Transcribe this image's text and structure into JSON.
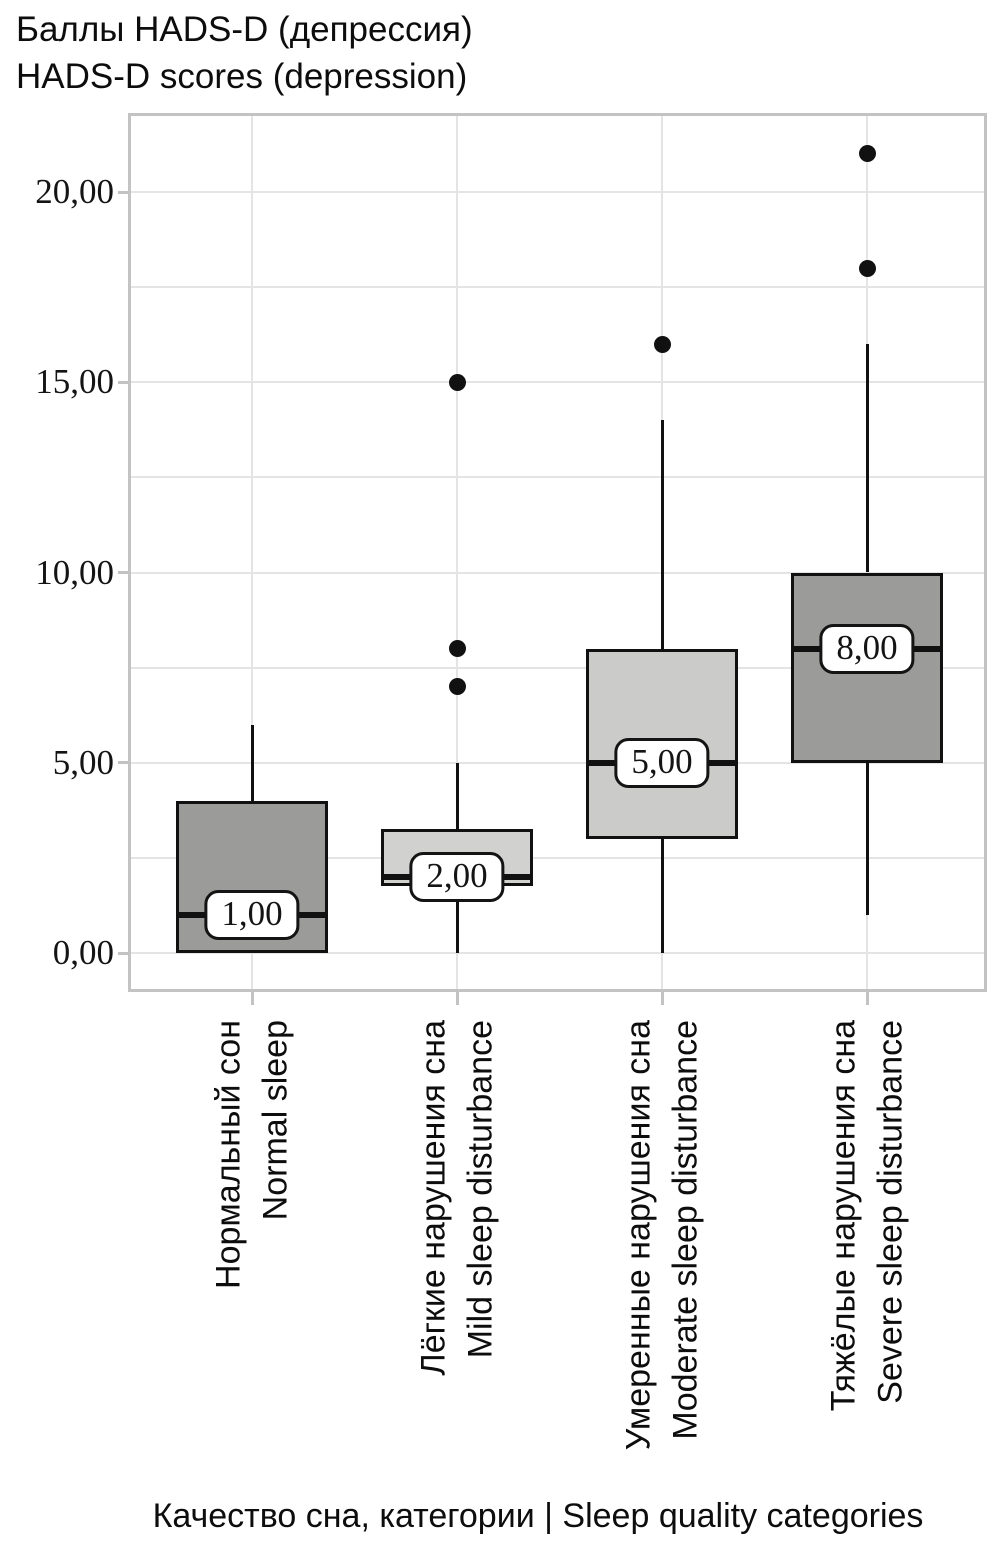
{
  "chart_data": {
    "type": "boxplot",
    "title_ru": "Баллы HADS-D (депрессия)",
    "title_en": "HADS-D scores (depression)",
    "xlabel": "Качество сна, категории | Sleep quality categories",
    "ylabel": "",
    "y_axis": {
      "tick_values": [
        0,
        5,
        10,
        15,
        20
      ],
      "tick_labels": [
        "0,00",
        "5,00",
        "10,00",
        "15,00",
        "20,00"
      ],
      "grid_min": 0,
      "grid_max": 20,
      "grid_step": 2.5,
      "ylim": [
        -1,
        22.1
      ],
      "grid": true
    },
    "categories": [
      {
        "ru": "Нормальный сон",
        "en": "Normal sleep"
      },
      {
        "ru": "Лёгкие нарушения сна",
        "en": "Mild sleep disturbance"
      },
      {
        "ru": "Умеренные нарушения сна",
        "en": "Moderate sleep disturbance"
      },
      {
        "ru": "Тяжёлые нарушения сна",
        "en": "Severe sleep disturbance"
      }
    ],
    "series": [
      {
        "name": "Normal sleep",
        "q1": 0,
        "median": 1,
        "q3": 4,
        "whisker_low": 0,
        "whisker_high": 6,
        "outliers": [],
        "median_label": "1,00",
        "fill": "#9b9b99"
      },
      {
        "name": "Mild sleep disturbance",
        "q1": 1.75,
        "median": 2,
        "q3": 3.25,
        "whisker_low": 0,
        "whisker_high": 5,
        "outliers": [
          7,
          8,
          15
        ],
        "median_label": "2,00",
        "fill": "#d1d1cf"
      },
      {
        "name": "Moderate sleep disturbance",
        "q1": 3,
        "median": 5,
        "q3": 8,
        "whisker_low": 0,
        "whisker_high": 14,
        "outliers": [
          16
        ],
        "median_label": "5,00",
        "fill": "#cbcbc9"
      },
      {
        "name": "Severe sleep disturbance",
        "q1": 5,
        "median": 8,
        "q3": 10,
        "whisker_low": 1,
        "whisker_high": 16,
        "outliers": [
          18,
          21
        ],
        "median_label": "8,00",
        "fill": "#9b9b99"
      }
    ],
    "colors": {
      "box_border": "#111111",
      "median_line": "#111111",
      "outlier": "#111111",
      "grid": "#e4e4e4",
      "frame": "#c3c3c3",
      "tick": "#c3c3c3",
      "label_box_bg": "#ffffff",
      "label_box_border": "#141414"
    },
    "legend": false
  }
}
